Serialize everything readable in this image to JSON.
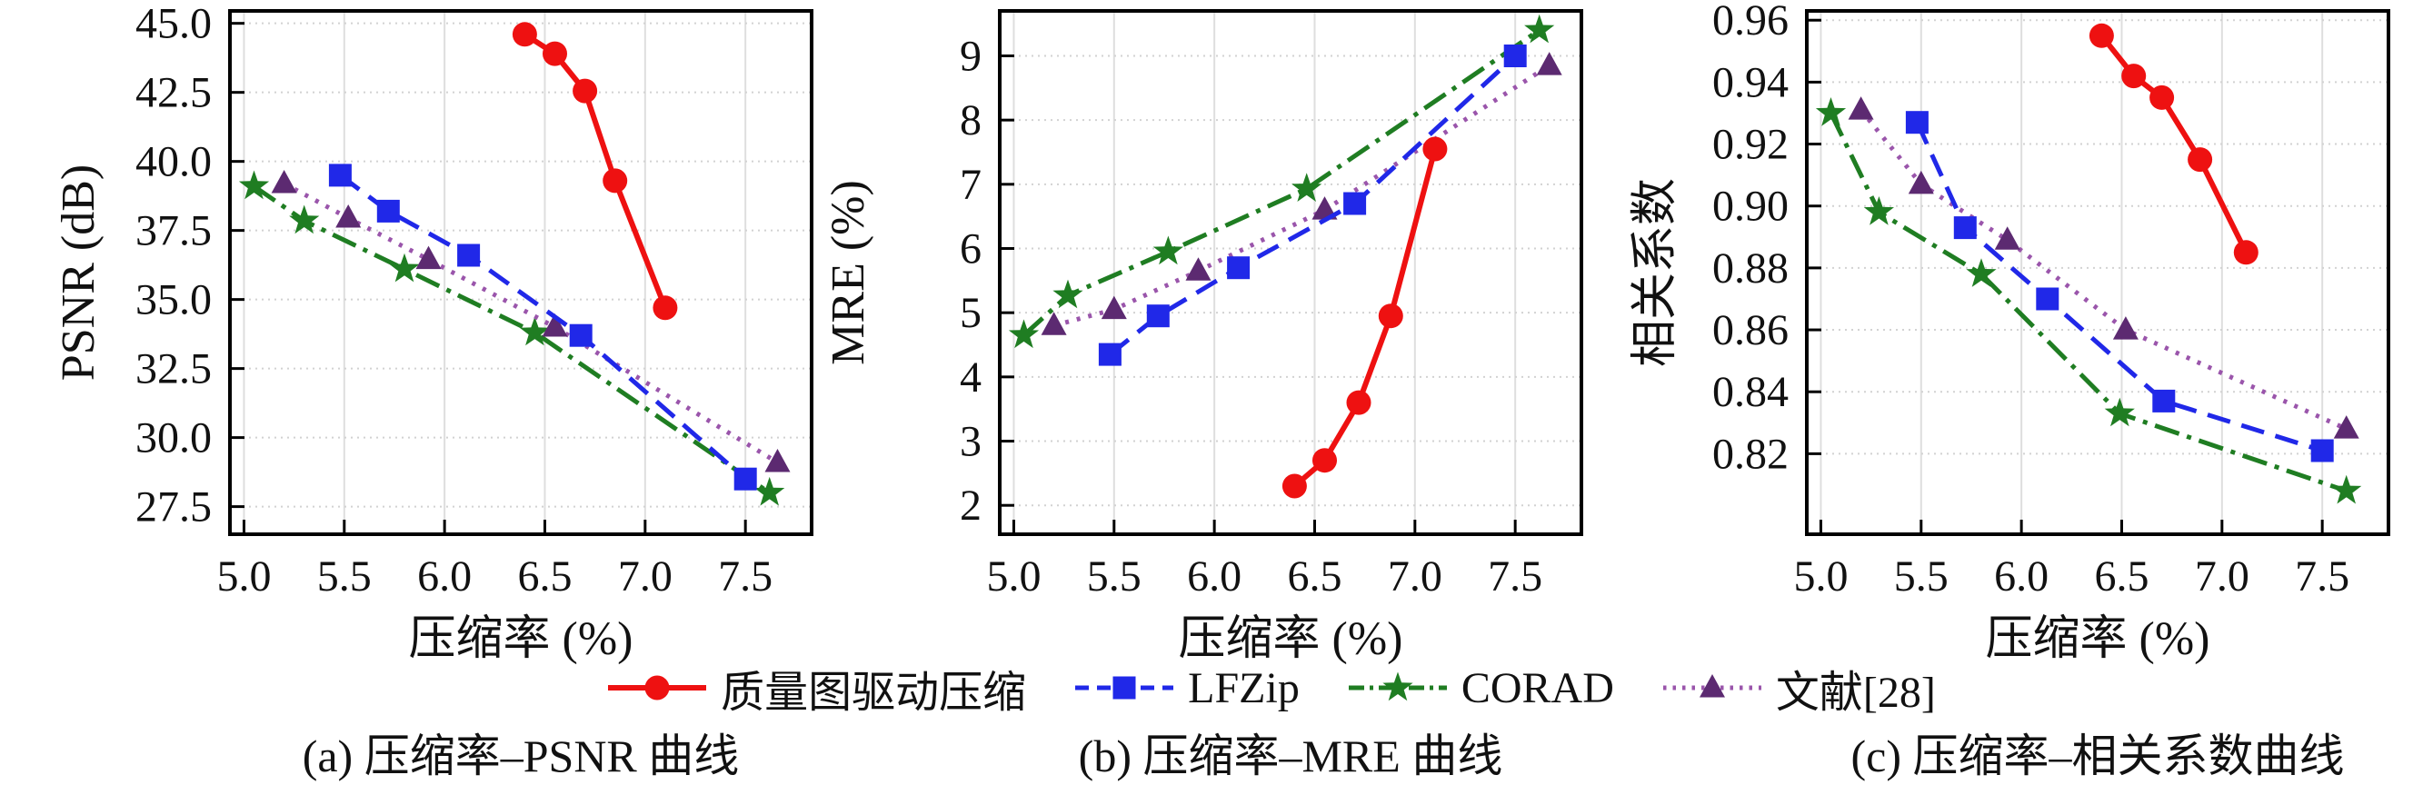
{
  "legend": {
    "items": [
      {
        "label": "质量图驱动压缩",
        "color": "#ee1111",
        "line_color": "#ee1111",
        "marker": "circle",
        "dash": "solid"
      },
      {
        "label": "LFZip",
        "color": "#2028e8",
        "line_color": "#2028e8",
        "marker": "square",
        "dash": "dashed"
      },
      {
        "label": "CORAD",
        "color": "#1f7d22",
        "line_color": "#1f7d22",
        "marker": "star",
        "dash": "dashdot"
      },
      {
        "label": "文献[28]",
        "color": "#5c2a71",
        "line_color": "#9a55ab",
        "marker": "triangle",
        "dash": "dotted"
      }
    ]
  },
  "captions": [
    "(a) 压缩率–PSNR 曲线",
    "(b) 压缩率–MRE 曲线",
    "(c) 压缩率–相关系数曲线"
  ],
  "chart_data": [
    {
      "type": "line",
      "title": "",
      "xlabel": "压缩率 (%)",
      "ylabel": "PSNR (dB)",
      "xlim": [
        4.93,
        7.83
      ],
      "ylim": [
        26.5,
        45.45
      ],
      "x_ticks": [
        5.0,
        5.5,
        6.0,
        6.5,
        7.0,
        7.5
      ],
      "x_tick_labels": [
        "5.0",
        "5.5",
        "6.0",
        "6.5",
        "7.0",
        "7.5"
      ],
      "y_ticks": [
        27.5,
        30.0,
        32.5,
        35.0,
        37.5,
        40.0,
        42.5,
        45.0
      ],
      "y_tick_labels": [
        "27.5",
        "30.0",
        "32.5",
        "35.0",
        "37.5",
        "40.0",
        "42.5",
        "45.0"
      ],
      "grid": true,
      "legend_position": "below-figure",
      "series": [
        {
          "name": "质量图驱动压缩",
          "x": [
            6.4,
            6.55,
            6.7,
            6.85,
            7.1
          ],
          "y": [
            44.6,
            43.9,
            42.55,
            39.3,
            34.7
          ]
        },
        {
          "name": "LFZip",
          "x": [
            5.48,
            5.72,
            6.12,
            6.68,
            7.5
          ],
          "y": [
            39.5,
            38.2,
            36.6,
            33.7,
            28.5
          ]
        },
        {
          "name": "CORAD",
          "x": [
            5.05,
            5.3,
            5.8,
            6.45,
            7.62
          ],
          "y": [
            39.1,
            37.85,
            36.1,
            33.8,
            28.0
          ]
        },
        {
          "name": "文献[28]",
          "x": [
            5.2,
            5.52,
            5.92,
            6.55,
            7.66
          ],
          "y": [
            39.2,
            37.95,
            36.45,
            34.0,
            29.1
          ]
        }
      ]
    },
    {
      "type": "line",
      "title": "",
      "xlabel": "压缩率 (%)",
      "ylabel": "MRE (%)",
      "xlim": [
        4.93,
        7.83
      ],
      "ylim": [
        1.55,
        9.7
      ],
      "x_ticks": [
        5.0,
        5.5,
        6.0,
        6.5,
        7.0,
        7.5
      ],
      "x_tick_labels": [
        "5.0",
        "5.5",
        "6.0",
        "6.5",
        "7.0",
        "7.5"
      ],
      "y_ticks": [
        2,
        3,
        4,
        5,
        6,
        7,
        8,
        9
      ],
      "y_tick_labels": [
        "2",
        "3",
        "4",
        "5",
        "6",
        "7",
        "8",
        "9"
      ],
      "grid": true,
      "legend_position": "below-figure",
      "series": [
        {
          "name": "质量图驱动压缩",
          "x": [
            6.4,
            6.55,
            6.72,
            6.88,
            7.1
          ],
          "y": [
            2.3,
            2.7,
            3.6,
            4.95,
            7.55
          ]
        },
        {
          "name": "LFZip",
          "x": [
            5.48,
            5.72,
            6.12,
            6.7,
            7.5
          ],
          "y": [
            4.35,
            4.95,
            5.7,
            6.7,
            9.0
          ]
        },
        {
          "name": "CORAD",
          "x": [
            5.05,
            5.27,
            5.77,
            6.46,
            7.62
          ],
          "y": [
            4.65,
            5.27,
            5.95,
            6.93,
            9.4
          ]
        },
        {
          "name": "文献[28]",
          "x": [
            5.2,
            5.5,
            5.92,
            6.55,
            7.67
          ],
          "y": [
            4.8,
            5.05,
            5.65,
            6.6,
            8.85
          ]
        }
      ]
    },
    {
      "type": "line",
      "title": "",
      "xlabel": "压缩率 (%)",
      "ylabel": "相关系数",
      "xlim": [
        4.93,
        7.83
      ],
      "ylim": [
        0.794,
        0.963
      ],
      "x_ticks": [
        5.0,
        5.5,
        6.0,
        6.5,
        7.0,
        7.5
      ],
      "x_tick_labels": [
        "5.0",
        "5.5",
        "6.0",
        "6.5",
        "7.0",
        "7.5"
      ],
      "y_ticks": [
        0.82,
        0.84,
        0.86,
        0.88,
        0.9,
        0.92,
        0.94,
        0.96
      ],
      "y_tick_labels": [
        "0.82",
        "0.84",
        "0.86",
        "0.88",
        "0.90",
        "0.92",
        "0.94",
        "0.96"
      ],
      "grid": true,
      "legend_position": "below-figure",
      "series": [
        {
          "name": "质量图驱动压缩",
          "x": [
            6.4,
            6.56,
            6.7,
            6.89,
            7.12
          ],
          "y": [
            0.955,
            0.942,
            0.935,
            0.915,
            0.885
          ]
        },
        {
          "name": "LFZip",
          "x": [
            5.48,
            5.72,
            6.13,
            6.71,
            7.5
          ],
          "y": [
            0.927,
            0.893,
            0.87,
            0.837,
            0.821
          ]
        },
        {
          "name": "CORAD",
          "x": [
            5.05,
            5.29,
            5.8,
            6.49,
            7.62
          ],
          "y": [
            0.93,
            0.898,
            0.878,
            0.833,
            0.808
          ]
        },
        {
          "name": "文献[28]",
          "x": [
            5.2,
            5.5,
            5.93,
            6.52,
            7.62
          ],
          "y": [
            0.931,
            0.907,
            0.889,
            0.86,
            0.828
          ]
        }
      ]
    }
  ]
}
